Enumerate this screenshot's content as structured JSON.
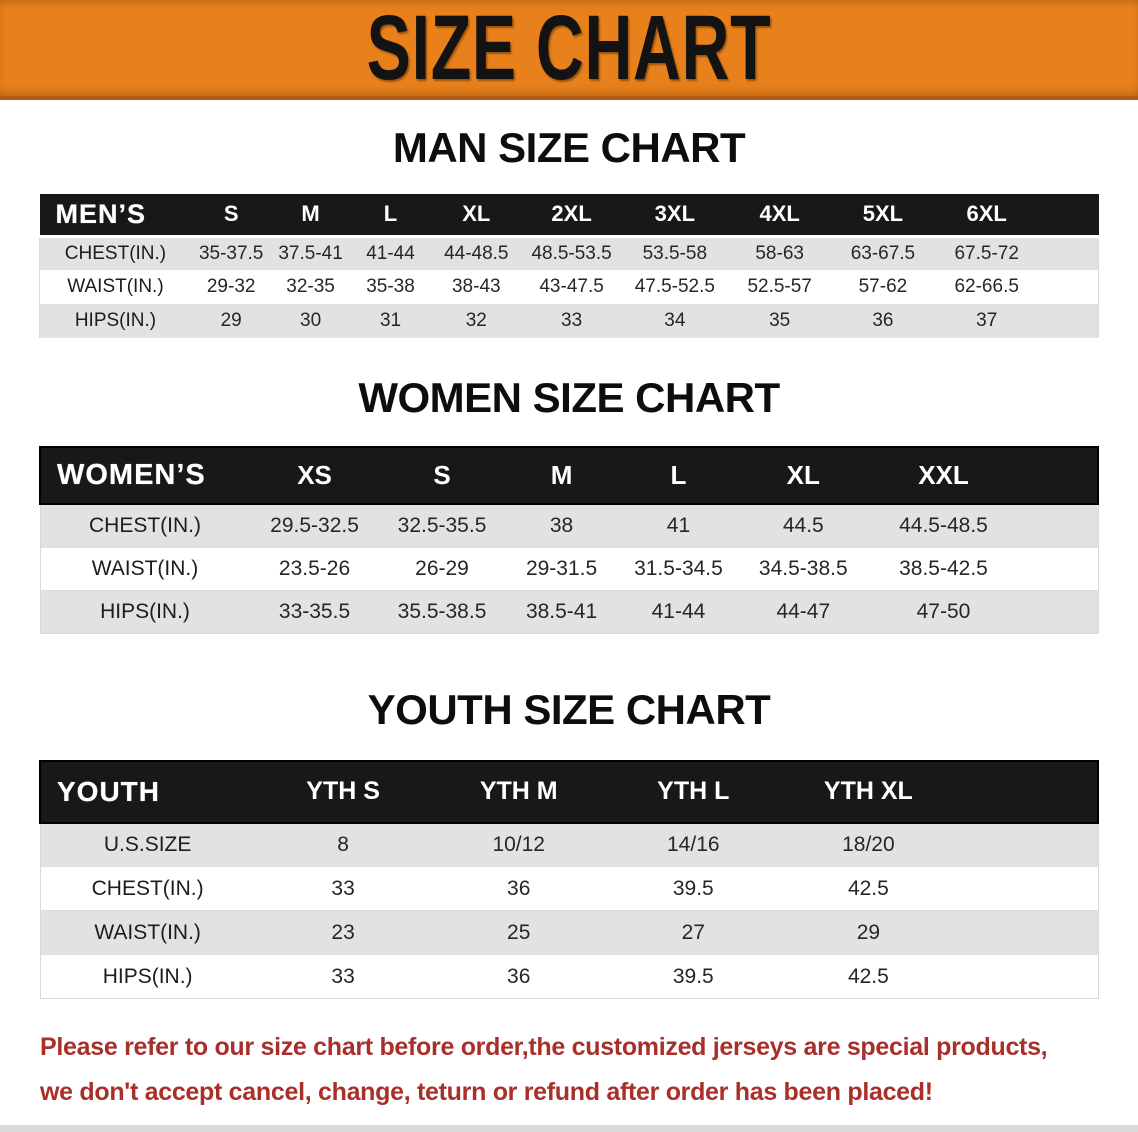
{
  "banner": {
    "title": "SIZE CHART"
  },
  "colors": {
    "accent_orange": "#E8811C",
    "banner_edge": "#AF5E10",
    "header_black": "#181818",
    "row_gray": "#E2E2E2",
    "note_red": "#A9302A"
  },
  "sections": [
    {
      "heading": "MAN SIZE CHART",
      "table": {
        "header_label": "MEN’S",
        "columns": [
          "S",
          "M",
          "L",
          "XL",
          "2XL",
          "3XL",
          "4XL",
          "5XL",
          "6XL"
        ],
        "rows": [
          {
            "label": "CHEST(IN.)",
            "values": [
              "35-37.5",
              "37.5-41",
              "41-44",
              "44-48.5",
              "48.5-53.5",
              "53.5-58",
              "58-63",
              "63-67.5",
              "67.5-72"
            ]
          },
          {
            "label": "WAIST(IN.)",
            "values": [
              "29-32",
              "32-35",
              "35-38",
              "38-43",
              "43-47.5",
              "47.5-52.5",
              "52.5-57",
              "57-62",
              "62-66.5"
            ]
          },
          {
            "label": "HIPS(IN.)",
            "values": [
              "29",
              "30",
              "31",
              "32",
              "33",
              "34",
              "35",
              "36",
              "37"
            ]
          }
        ]
      }
    },
    {
      "heading": "WOMEN SIZE CHART",
      "table": {
        "header_label": "WOMEN’S",
        "columns": [
          "XS",
          "S",
          "M",
          "L",
          "XL",
          "XXL"
        ],
        "rows": [
          {
            "label": "CHEST(IN.)",
            "values": [
              "29.5-32.5",
              "32.5-35.5",
              "38",
              "41",
              "44.5",
              "44.5-48.5"
            ]
          },
          {
            "label": "WAIST(IN.)",
            "values": [
              "23.5-26",
              "26-29",
              "29-31.5",
              "31.5-34.5",
              "34.5-38.5",
              "38.5-42.5"
            ]
          },
          {
            "label": "HIPS(IN.)",
            "values": [
              "33-35.5",
              "35.5-38.5",
              "38.5-41",
              "41-44",
              "44-47",
              "47-50"
            ]
          }
        ]
      }
    },
    {
      "heading": "YOUTH SIZE CHART",
      "table": {
        "header_label": "YOUTH",
        "columns": [
          "YTH S",
          "YTH M",
          "YTH L",
          "YTH XL"
        ],
        "rows": [
          {
            "label": "U.S.SIZE",
            "values": [
              "8",
              "10/12",
              "14/16",
              "18/20"
            ]
          },
          {
            "label": "CHEST(IN.)",
            "values": [
              "33",
              "36",
              "39.5",
              "42.5"
            ]
          },
          {
            "label": "WAIST(IN.)",
            "values": [
              "23",
              "25",
              "27",
              "29"
            ]
          },
          {
            "label": "HIPS(IN.)",
            "values": [
              "33",
              "36",
              "39.5",
              "42.5"
            ]
          }
        ]
      }
    }
  ],
  "footer": {
    "line1": "Please refer to our size chart before order,the customized jerseys are special products,",
    "line2": "we don't accept cancel, change, teturn or refund after order has been placed!"
  }
}
